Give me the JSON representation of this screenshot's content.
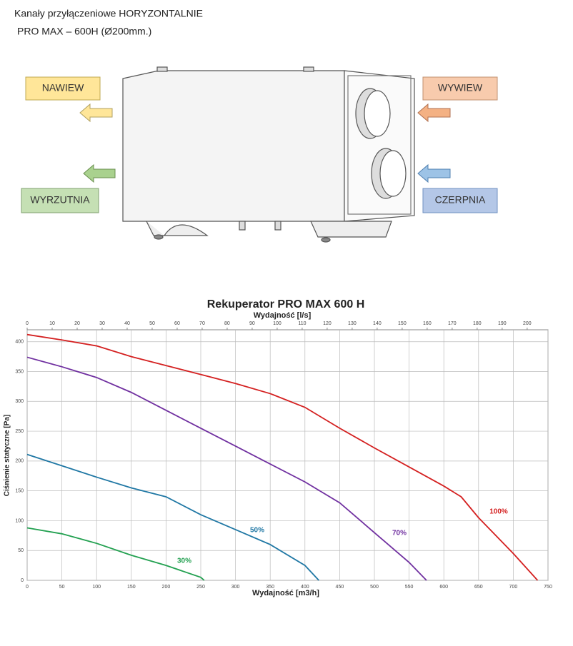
{
  "header": {
    "line1": "Kanały przyłączeniowe HORYZONTALNIE",
    "line2": "PRO MAX – 600H (Ø200mm.)"
  },
  "diagram": {
    "nawiew": "NAWIEW",
    "wywiew": "WYWIEW",
    "wyrzutnia": "WYRZUTNIA",
    "czerpnia": "CZERPNIA"
  },
  "chart_data": {
    "type": "line",
    "title": "Rekuperator PRO MAX 600 H",
    "xlabel": "Wydajność [m3/h]",
    "x2label": "Wydajność [l/s]",
    "ylabel": "Ciśnienie statyczne [Pa]",
    "xlim": [
      0,
      750
    ],
    "xticks": [
      0,
      50,
      100,
      150,
      200,
      250,
      300,
      350,
      400,
      450,
      500,
      550,
      600,
      650,
      700,
      750
    ],
    "x2lim": [
      0,
      208.33
    ],
    "x2ticks": [
      0,
      10,
      20,
      30,
      40,
      50,
      60,
      70,
      80,
      90,
      100,
      110,
      120,
      130,
      140,
      150,
      160,
      170,
      180,
      190,
      200
    ],
    "ylim": [
      0,
      420
    ],
    "yticks": [
      0,
      50,
      100,
      150,
      200,
      250,
      300,
      350,
      400
    ],
    "grid": true,
    "series": [
      {
        "name": "100%",
        "color": "#d42020",
        "x": [
          0,
          50,
          100,
          150,
          200,
          250,
          300,
          350,
          400,
          450,
          500,
          550,
          600,
          625,
          650,
          700,
          735
        ],
        "values": [
          412,
          403,
          393,
          375,
          360,
          345,
          330,
          313,
          290,
          255,
          222,
          190,
          158,
          140,
          105,
          45,
          0
        ]
      },
      {
        "name": "70%",
        "color": "#7030a0",
        "x": [
          0,
          50,
          100,
          150,
          200,
          250,
          300,
          350,
          400,
          450,
          500,
          550,
          575
        ],
        "values": [
          374,
          358,
          340,
          315,
          285,
          255,
          225,
          195,
          165,
          130,
          80,
          30,
          0
        ]
      },
      {
        "name": "50%",
        "color": "#1f77a4",
        "x": [
          0,
          50,
          100,
          150,
          200,
          250,
          300,
          350,
          400,
          420
        ],
        "values": [
          211,
          192,
          173,
          155,
          140,
          110,
          85,
          60,
          25,
          0
        ]
      },
      {
        "name": "30%",
        "color": "#22a050",
        "x": [
          0,
          50,
          100,
          150,
          200,
          250,
          255
        ],
        "values": [
          88,
          78,
          62,
          42,
          25,
          5,
          0
        ]
      }
    ]
  }
}
